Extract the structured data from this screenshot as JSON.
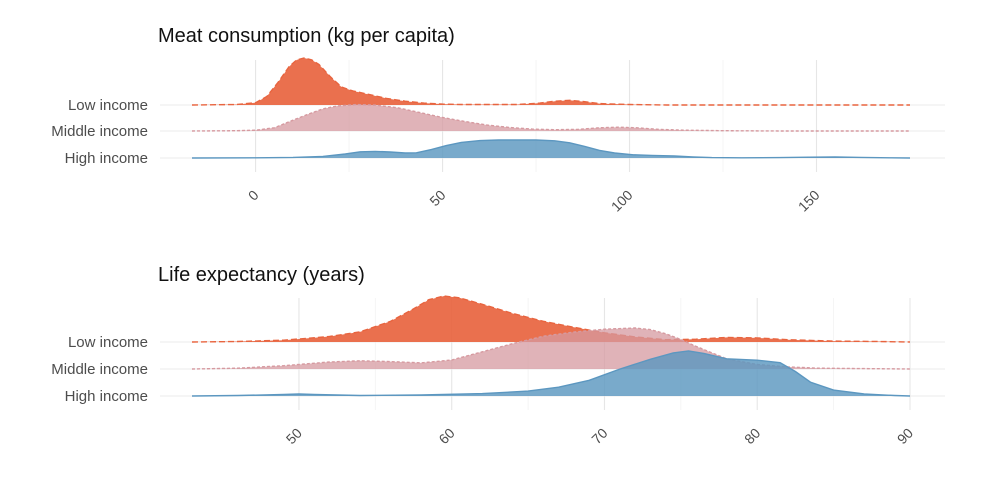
{
  "chart_data": [
    {
      "type": "ridgeline",
      "title": "Meat consumption (kg per capita)",
      "xlabel": "",
      "ylabel": "",
      "xlim": [
        -17,
        175
      ],
      "x_ticks": [
        0,
        50,
        100,
        150
      ],
      "x_tick_labels": [
        "0",
        "50",
        "100",
        "150"
      ],
      "grid": true,
      "series": [
        {
          "name": "Low income",
          "color": "#E8643F",
          "line": "dashed",
          "points": [
            [
              -17,
              0
            ],
            [
              -5,
              0.01
            ],
            [
              0,
              0.05
            ],
            [
              3,
              0.18
            ],
            [
              6,
              0.48
            ],
            [
              9,
              0.82
            ],
            [
              11,
              0.96
            ],
            [
              13,
              1.0
            ],
            [
              15,
              0.96
            ],
            [
              17,
              0.86
            ],
            [
              20,
              0.6
            ],
            [
              23,
              0.38
            ],
            [
              26,
              0.3
            ],
            [
              30,
              0.23
            ],
            [
              35,
              0.14
            ],
            [
              40,
              0.08
            ],
            [
              45,
              0.04
            ],
            [
              50,
              0.02
            ],
            [
              55,
              0.01
            ],
            [
              60,
              0.01
            ],
            [
              70,
              0.01
            ],
            [
              76,
              0.04
            ],
            [
              80,
              0.08
            ],
            [
              84,
              0.1
            ],
            [
              88,
              0.07
            ],
            [
              92,
              0.03
            ],
            [
              100,
              0.01
            ],
            [
              110,
              0
            ],
            [
              175,
              0
            ]
          ]
        },
        {
          "name": "Middle income",
          "color": "#D69AA0",
          "line": "dotted",
          "points": [
            [
              -17,
              0
            ],
            [
              -5,
              0.01
            ],
            [
              0,
              0.03
            ],
            [
              5,
              0.12
            ],
            [
              10,
              0.4
            ],
            [
              14,
              0.62
            ],
            [
              18,
              0.82
            ],
            [
              22,
              0.93
            ],
            [
              27,
              0.98
            ],
            [
              32,
              0.96
            ],
            [
              38,
              0.86
            ],
            [
              44,
              0.68
            ],
            [
              50,
              0.5
            ],
            [
              56,
              0.35
            ],
            [
              62,
              0.22
            ],
            [
              68,
              0.13
            ],
            [
              74,
              0.07
            ],
            [
              80,
              0.05
            ],
            [
              86,
              0.06
            ],
            [
              92,
              0.12
            ],
            [
              97,
              0.14
            ],
            [
              102,
              0.12
            ],
            [
              108,
              0.06
            ],
            [
              115,
              0.03
            ],
            [
              125,
              0.01
            ],
            [
              140,
              0
            ],
            [
              175,
              0
            ]
          ]
        },
        {
          "name": "High income",
          "color": "#5C97C0",
          "line": "solid",
          "points": [
            [
              -17,
              0
            ],
            [
              0,
              0.01
            ],
            [
              10,
              0.03
            ],
            [
              18,
              0.08
            ],
            [
              24,
              0.2
            ],
            [
              28,
              0.31
            ],
            [
              32,
              0.33
            ],
            [
              36,
              0.3
            ],
            [
              40,
              0.25
            ],
            [
              43,
              0.26
            ],
            [
              47,
              0.42
            ],
            [
              51,
              0.62
            ],
            [
              55,
              0.78
            ],
            [
              60,
              0.87
            ],
            [
              65,
              0.9
            ],
            [
              70,
              0.9
            ],
            [
              75,
              0.9
            ],
            [
              80,
              0.86
            ],
            [
              84,
              0.76
            ],
            [
              88,
              0.58
            ],
            [
              92,
              0.38
            ],
            [
              96,
              0.25
            ],
            [
              101,
              0.16
            ],
            [
              106,
              0.13
            ],
            [
              112,
              0.1
            ],
            [
              117,
              0.05
            ],
            [
              122,
              0.02
            ],
            [
              130,
              0.01
            ],
            [
              140,
              0.02
            ],
            [
              148,
              0.04
            ],
            [
              155,
              0.05
            ],
            [
              162,
              0.03
            ],
            [
              170,
              0.01
            ],
            [
              175,
              0
            ]
          ]
        }
      ]
    },
    {
      "type": "ridgeline",
      "title": "Life expectancy (years)",
      "xlabel": "",
      "ylabel": "",
      "xlim": [
        43,
        90
      ],
      "x_ticks": [
        50,
        60,
        70,
        80,
        90
      ],
      "x_tick_labels": [
        "50",
        "60",
        "70",
        "80",
        "90"
      ],
      "grid": true,
      "series": [
        {
          "name": "Low income",
          "color": "#E8643F",
          "line": "dashed",
          "points": [
            [
              43,
              0
            ],
            [
              46,
              0.01
            ],
            [
              49,
              0.04
            ],
            [
              52,
              0.12
            ],
            [
              54,
              0.22
            ],
            [
              56,
              0.45
            ],
            [
              57.5,
              0.72
            ],
            [
              58.5,
              0.92
            ],
            [
              59.5,
              1.0
            ],
            [
              60.5,
              0.96
            ],
            [
              62,
              0.82
            ],
            [
              64,
              0.62
            ],
            [
              66,
              0.45
            ],
            [
              68,
              0.32
            ],
            [
              70,
              0.2
            ],
            [
              72,
              0.11
            ],
            [
              74,
              0.05
            ],
            [
              76,
              0.06
            ],
            [
              78,
              0.1
            ],
            [
              80,
              0.09
            ],
            [
              82,
              0.05
            ],
            [
              85,
              0.02
            ],
            [
              88,
              0.01
            ],
            [
              90,
              0
            ]
          ]
        },
        {
          "name": "Middle income",
          "color": "#D69AA0",
          "line": "dotted",
          "points": [
            [
              43,
              0
            ],
            [
              46,
              0.02
            ],
            [
              49,
              0.08
            ],
            [
              52,
              0.17
            ],
            [
              54,
              0.2
            ],
            [
              56,
              0.18
            ],
            [
              58,
              0.15
            ],
            [
              60,
              0.22
            ],
            [
              62,
              0.42
            ],
            [
              64,
              0.62
            ],
            [
              66,
              0.8
            ],
            [
              68,
              0.9
            ],
            [
              70,
              0.97
            ],
            [
              72,
              1.0
            ],
            [
              73,
              0.96
            ],
            [
              74,
              0.86
            ],
            [
              75,
              0.72
            ],
            [
              76,
              0.55
            ],
            [
              77,
              0.4
            ],
            [
              78,
              0.25
            ],
            [
              80,
              0.11
            ],
            [
              82,
              0.05
            ],
            [
              84,
              0.02
            ],
            [
              87,
              0.01
            ],
            [
              90,
              0
            ]
          ]
        },
        {
          "name": "High income",
          "color": "#5C97C0",
          "line": "solid",
          "points": [
            [
              43,
              0
            ],
            [
              46,
              0.01
            ],
            [
              49,
              0.03
            ],
            [
              50,
              0.04
            ],
            [
              51,
              0.03
            ],
            [
              54,
              0.01
            ],
            [
              58,
              0.02
            ],
            [
              62,
              0.05
            ],
            [
              65,
              0.1
            ],
            [
              67,
              0.18
            ],
            [
              69,
              0.32
            ],
            [
              71,
              0.55
            ],
            [
              73,
              0.75
            ],
            [
              74.5,
              0.88
            ],
            [
              75.5,
              0.92
            ],
            [
              76.5,
              0.87
            ],
            [
              78,
              0.76
            ],
            [
              80,
              0.73
            ],
            [
              81.5,
              0.68
            ],
            [
              82.5,
              0.5
            ],
            [
              83.5,
              0.28
            ],
            [
              85,
              0.12
            ],
            [
              87,
              0.04
            ],
            [
              89,
              0.01
            ],
            [
              90,
              0
            ]
          ]
        }
      ]
    }
  ]
}
